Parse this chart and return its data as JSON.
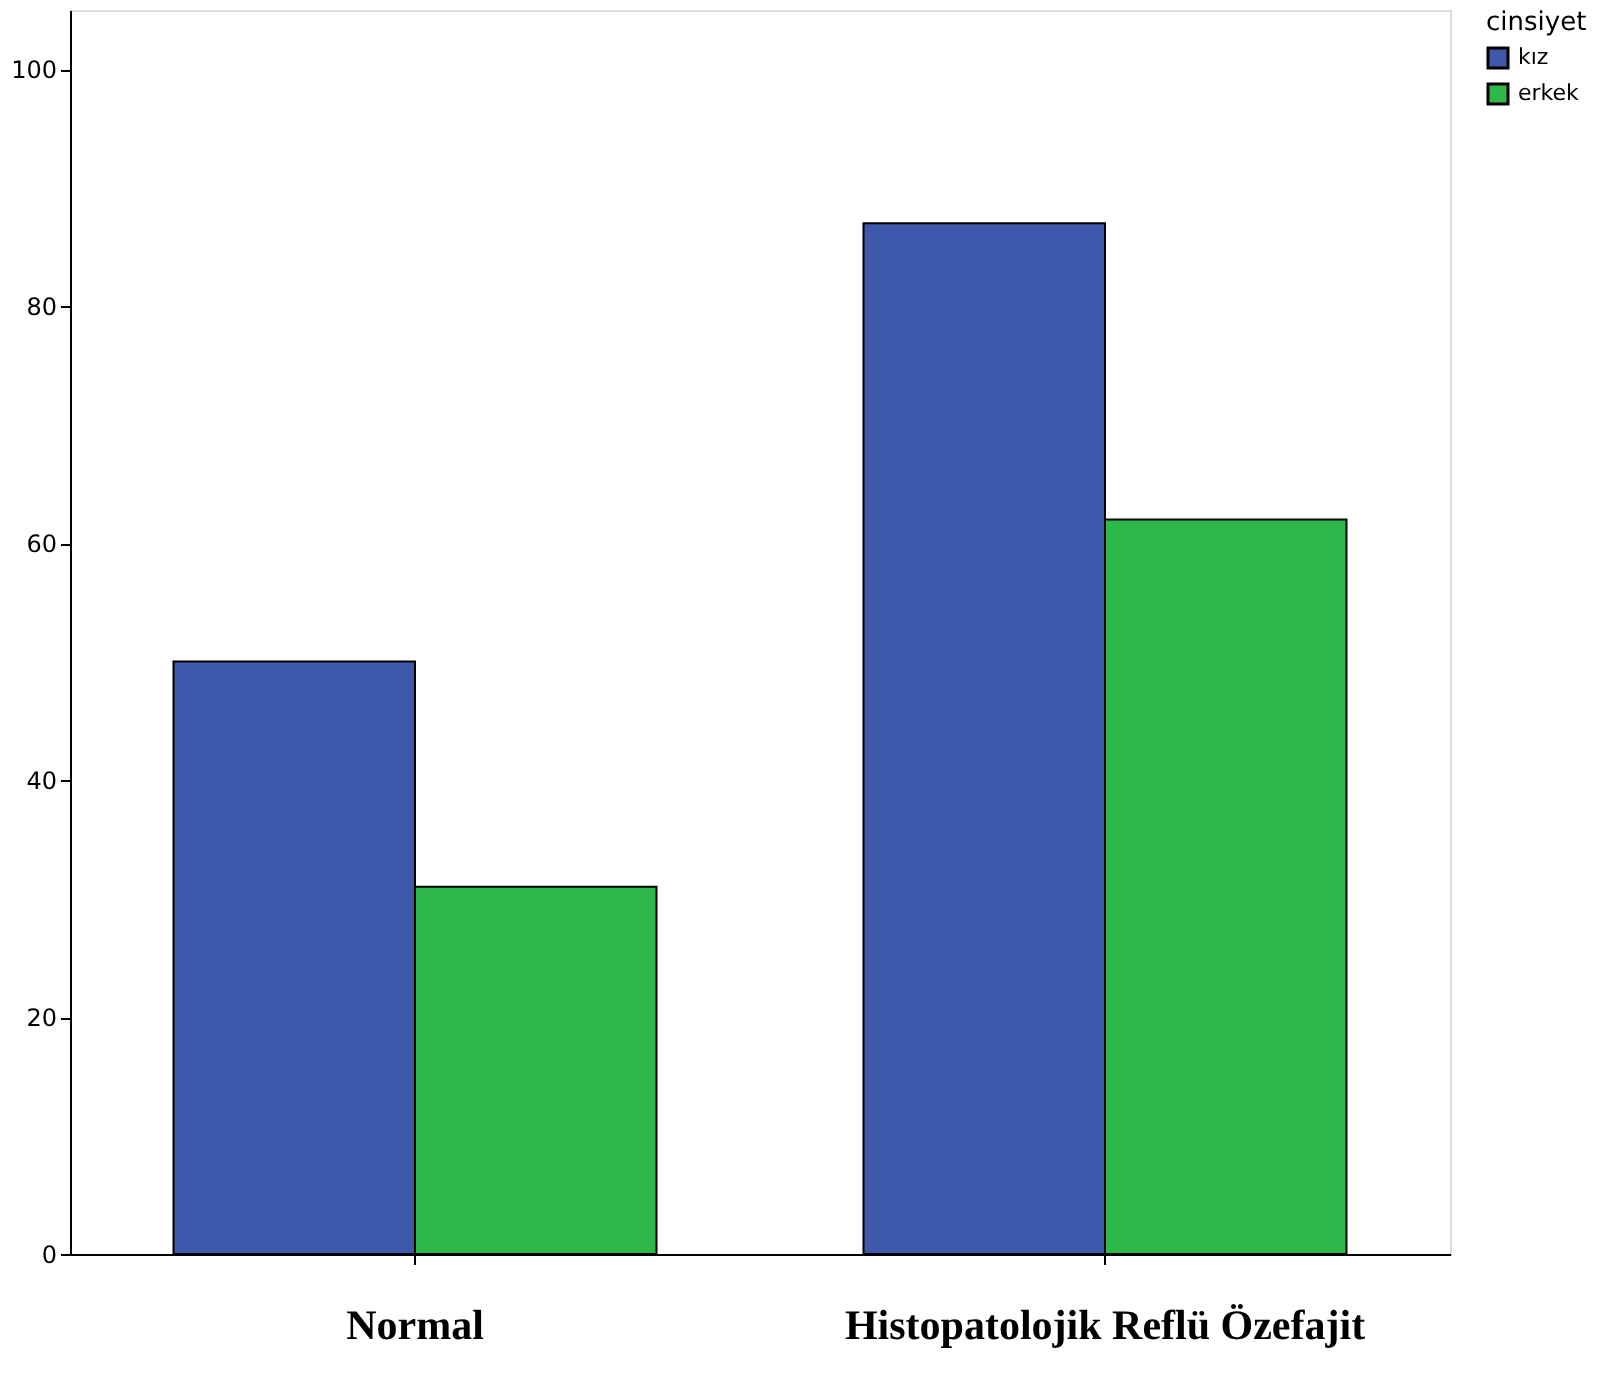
{
  "chart_data": {
    "type": "bar",
    "categories": [
      "Normal",
      "Histopatolojik Reflü Özefajit"
    ],
    "series": [
      {
        "name": "kız",
        "color": "#3e58ac",
        "values": [
          50,
          87
        ]
      },
      {
        "name": "erkek",
        "color": "#2eb84a",
        "values": [
          31,
          62
        ]
      }
    ],
    "legend_title": "cinsiyet",
    "legend": "top right",
    "ylim": [
      0,
      105
    ],
    "yticks": [
      0,
      20,
      40,
      60,
      80,
      100
    ],
    "grid": false
  }
}
